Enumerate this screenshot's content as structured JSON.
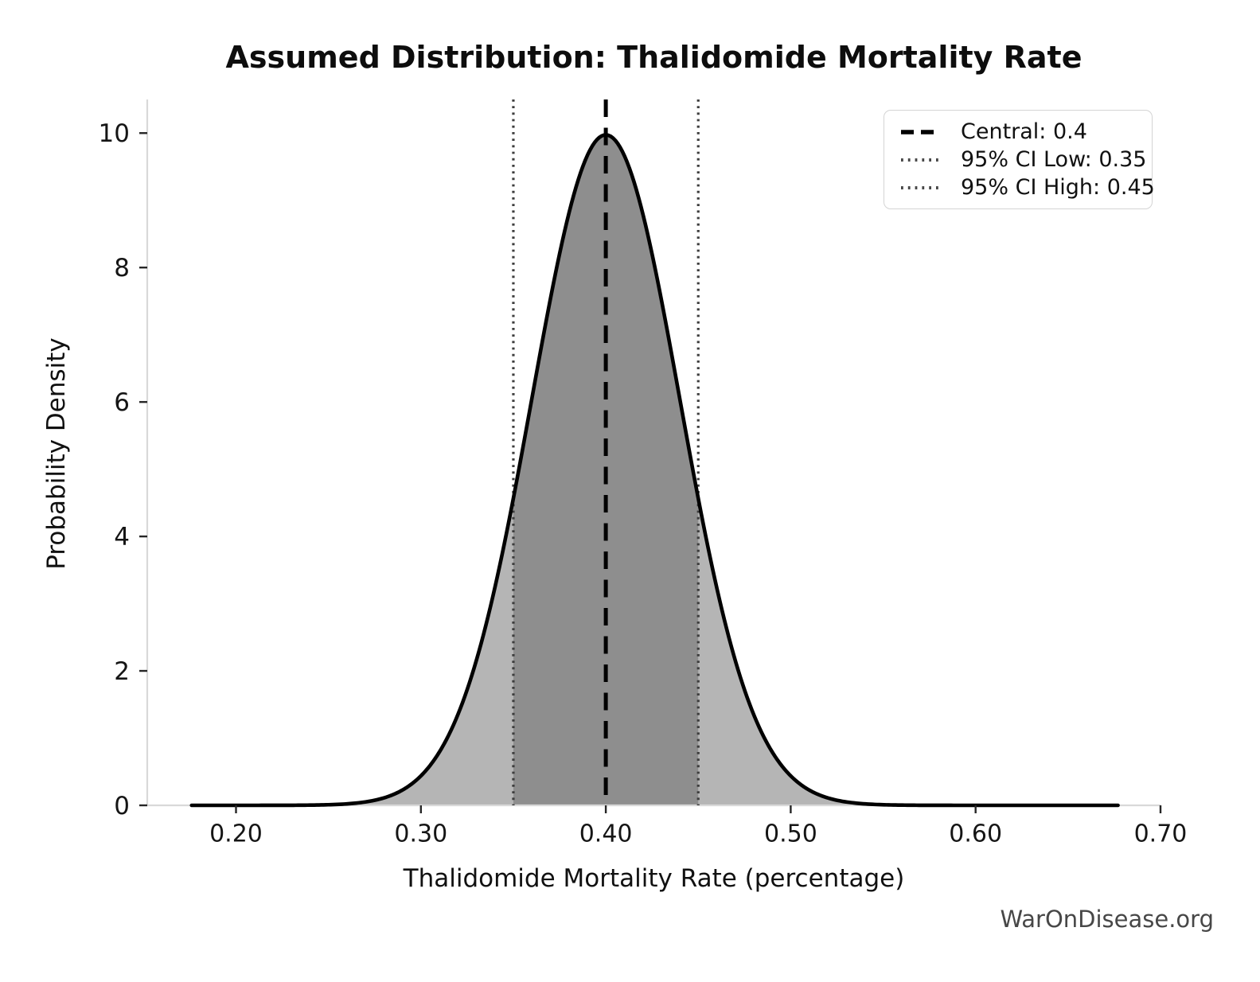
{
  "title": "Assumed Distribution: Thalidomide Mortality Rate",
  "watermark": "WarOnDisease.org",
  "chart_data": {
    "type": "area",
    "title": "Assumed Distribution: Thalidomide Mortality Rate",
    "xlabel": "Thalidomide Mortality Rate (percentage)",
    "ylabel": "Probability Density",
    "distribution": {
      "shape": "normal",
      "mean": 0.4,
      "sigma": 0.04,
      "peak_density": 9.97,
      "curve_x_start": 0.176,
      "curve_x_end": 0.677
    },
    "central": 0.4,
    "ci_low": 0.35,
    "ci_high": 0.45,
    "x_ticks": [
      0.2,
      0.3,
      0.4,
      0.5,
      0.6,
      0.7
    ],
    "x_tick_labels": [
      "0.20",
      "0.30",
      "0.40",
      "0.50",
      "0.60",
      "0.70"
    ],
    "y_ticks": [
      0,
      2,
      4,
      6,
      8,
      10
    ],
    "y_tick_labels": [
      "0",
      "2",
      "4",
      "6",
      "8",
      "10"
    ],
    "xlim": [
      0.152,
      0.7
    ],
    "ylim": [
      0,
      10.5
    ],
    "grid": false,
    "legend_position": "upper right",
    "legend": [
      {
        "label": "Central: 0.4",
        "line_style": "dashed",
        "color": "#000000"
      },
      {
        "label": "95% CI Low: 0.35",
        "line_style": "dotted",
        "color": "#474747"
      },
      {
        "label": "95% CI High: 0.45",
        "line_style": "dotted",
        "color": "#474747"
      }
    ],
    "colors": {
      "curve": "#000000",
      "fill_outer": "#b5b5b5",
      "fill_inner": "#8e8e8e",
      "central_line": "#000000",
      "ci_line": "#3d3d3d",
      "spine": "#d9d9d9",
      "tick": "#262626",
      "text": "#111111",
      "watermark": "#474747"
    }
  }
}
